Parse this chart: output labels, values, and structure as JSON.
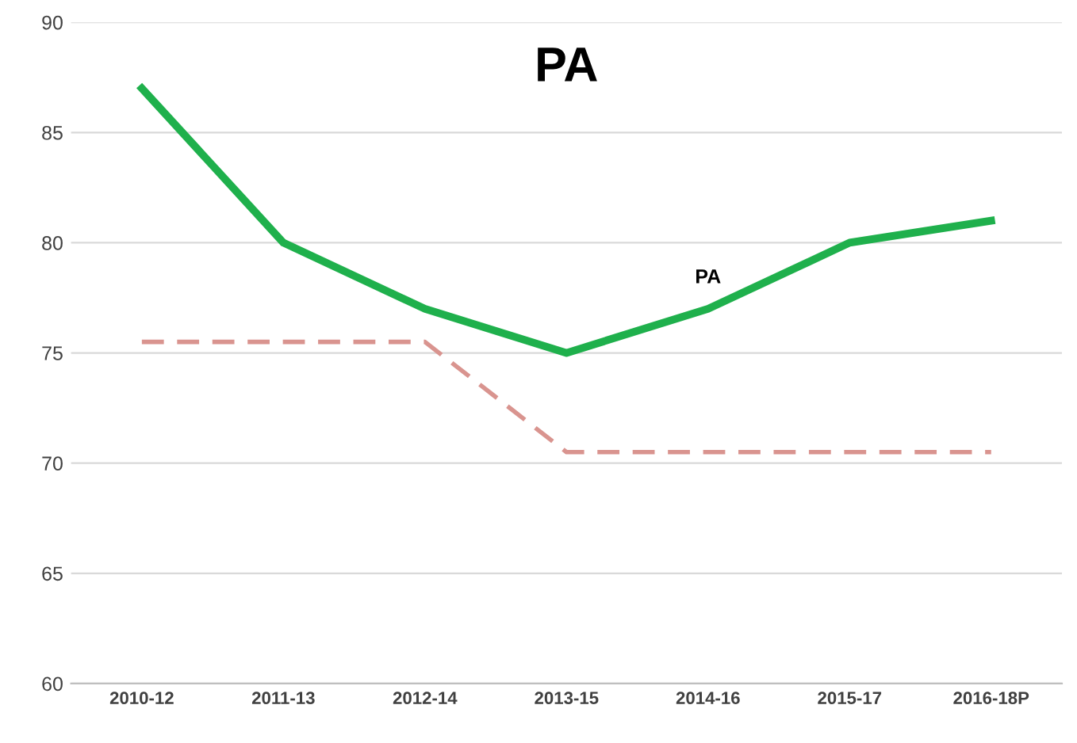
{
  "chart_data": {
    "type": "line",
    "title": "PA",
    "categories": [
      "2010-12",
      "2011-13",
      "2012-14",
      "2013-15",
      "2014-16",
      "2015-17",
      "2016-18P"
    ],
    "series": [
      {
        "name": "PA",
        "color": "#1fb04c",
        "values": [
          87,
          80,
          77,
          75,
          77,
          80,
          81
        ],
        "line_style": "solid"
      },
      {
        "color": "#d9948f",
        "values": [
          75.5,
          75.5,
          75.5,
          70.5,
          70.5,
          70.5,
          70.5
        ],
        "line_style": "dashed"
      }
    ],
    "ylim": [
      60,
      90
    ],
    "yticks": [
      60,
      65,
      70,
      75,
      80,
      85,
      90
    ],
    "grid": "y",
    "marker": "none"
  }
}
